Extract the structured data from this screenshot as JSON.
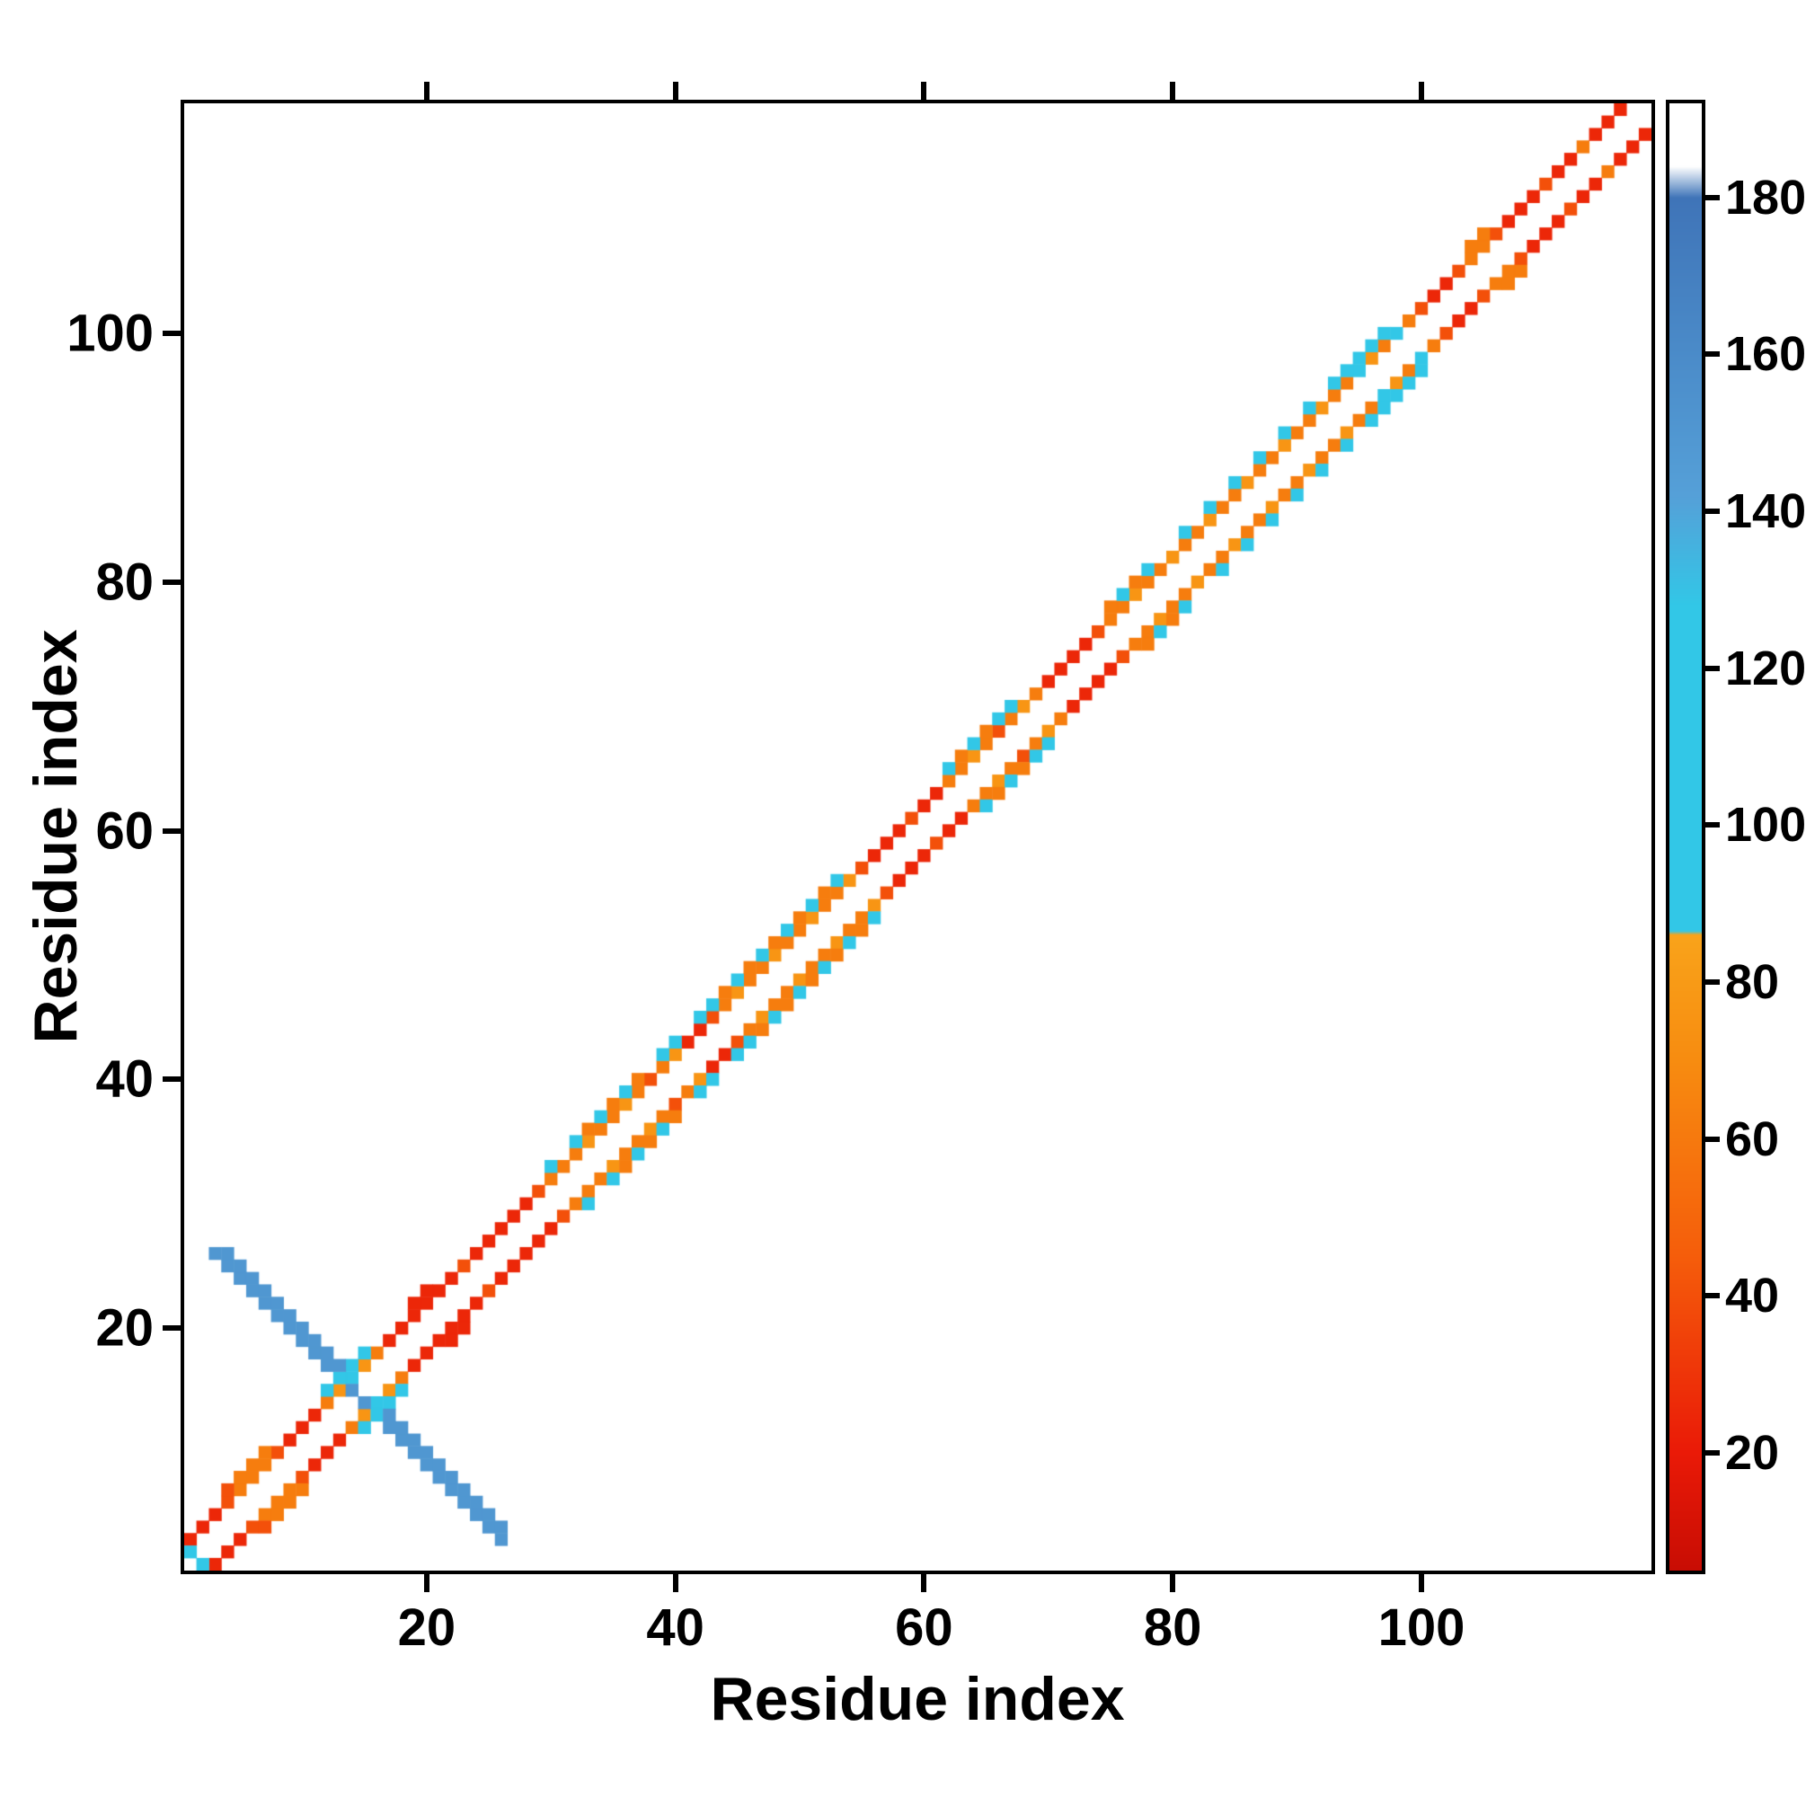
{
  "figure": {
    "background": "#ffffff",
    "frame_color": "#000000"
  },
  "chart_data": {
    "type": "heatmap",
    "title": "",
    "xlabel": "Residue index",
    "ylabel": "Residue index",
    "n_residues": 118,
    "axis_range": [
      1,
      118
    ],
    "x_ticks": [
      20,
      40,
      60,
      80,
      100
    ],
    "y_ticks": [
      20,
      40,
      60,
      80,
      100
    ],
    "grid": false,
    "symmetric": true,
    "background_cell_color": "#ffffff",
    "colorbar": {
      "position": "right",
      "ticks": [
        20,
        40,
        60,
        80,
        100,
        120,
        140,
        160,
        180
      ],
      "vmin": 5,
      "vmax": 192,
      "stops": [
        [
          5,
          "#c80d04"
        ],
        [
          20,
          "#ea1a07"
        ],
        [
          45,
          "#f55d0b"
        ],
        [
          70,
          "#f78c10"
        ],
        [
          86,
          "#f9a31a"
        ],
        [
          86.5,
          "#32c7e7"
        ],
        [
          128,
          "#32c7e7"
        ],
        [
          142,
          "#55a0d8"
        ],
        [
          180,
          "#3f74b8"
        ],
        [
          184,
          "#ffffff"
        ],
        [
          192,
          "#ffffff"
        ]
      ]
    },
    "cells": [
      [
        1,
        3,
        25
      ],
      [
        2,
        4,
        25
      ],
      [
        3,
        5,
        25
      ],
      [
        4,
        6,
        40
      ],
      [
        5,
        7,
        62
      ],
      [
        6,
        8,
        62
      ],
      [
        7,
        9,
        62
      ],
      [
        8,
        10,
        40
      ],
      [
        9,
        11,
        25
      ],
      [
        10,
        12,
        25
      ],
      [
        11,
        13,
        25
      ],
      [
        12,
        14,
        62
      ],
      [
        13,
        15,
        76
      ],
      [
        14,
        16,
        105
      ],
      [
        15,
        17,
        76
      ],
      [
        16,
        18,
        62
      ],
      [
        17,
        19,
        25
      ],
      [
        18,
        20,
        25
      ],
      [
        19,
        21,
        25
      ],
      [
        20,
        22,
        25
      ],
      [
        21,
        23,
        25
      ],
      [
        22,
        24,
        25
      ],
      [
        23,
        25,
        40
      ],
      [
        24,
        26,
        25
      ],
      [
        25,
        27,
        25
      ],
      [
        26,
        28,
        25
      ],
      [
        27,
        29,
        25
      ],
      [
        28,
        30,
        25
      ],
      [
        29,
        31,
        40
      ],
      [
        30,
        32,
        62
      ],
      [
        31,
        33,
        62
      ],
      [
        32,
        34,
        62
      ],
      [
        33,
        35,
        76
      ],
      [
        34,
        36,
        62
      ],
      [
        35,
        37,
        62
      ],
      [
        36,
        38,
        76
      ],
      [
        37,
        39,
        62
      ],
      [
        38,
        40,
        40
      ],
      [
        39,
        41,
        62
      ],
      [
        40,
        42,
        76
      ],
      [
        41,
        43,
        25
      ],
      [
        42,
        44,
        25
      ],
      [
        43,
        45,
        40
      ],
      [
        44,
        46,
        62
      ],
      [
        45,
        47,
        76
      ],
      [
        46,
        48,
        62
      ],
      [
        47,
        49,
        62
      ],
      [
        48,
        50,
        76
      ],
      [
        49,
        51,
        62
      ],
      [
        50,
        52,
        62
      ],
      [
        51,
        53,
        76
      ],
      [
        52,
        54,
        62
      ],
      [
        53,
        55,
        62
      ],
      [
        54,
        56,
        76
      ],
      [
        55,
        57,
        40
      ],
      [
        56,
        58,
        25
      ],
      [
        57,
        59,
        25
      ],
      [
        58,
        60,
        25
      ],
      [
        59,
        61,
        40
      ],
      [
        60,
        62,
        25
      ],
      [
        61,
        63,
        25
      ],
      [
        62,
        64,
        62
      ],
      [
        63,
        65,
        62
      ],
      [
        64,
        66,
        76
      ],
      [
        65,
        67,
        62
      ],
      [
        66,
        68,
        40
      ],
      [
        67,
        69,
        62
      ],
      [
        68,
        70,
        76
      ],
      [
        69,
        71,
        62
      ],
      [
        70,
        72,
        25
      ],
      [
        71,
        73,
        25
      ],
      [
        72,
        74,
        25
      ],
      [
        73,
        75,
        25
      ],
      [
        74,
        76,
        40
      ],
      [
        75,
        77,
        62
      ],
      [
        76,
        78,
        62
      ],
      [
        77,
        79,
        76
      ],
      [
        78,
        80,
        62
      ],
      [
        79,
        81,
        62
      ],
      [
        80,
        82,
        76
      ],
      [
        81,
        83,
        62
      ],
      [
        82,
        84,
        62
      ],
      [
        83,
        85,
        76
      ],
      [
        84,
        86,
        62
      ],
      [
        85,
        87,
        62
      ],
      [
        86,
        88,
        76
      ],
      [
        87,
        89,
        62
      ],
      [
        88,
        90,
        62
      ],
      [
        89,
        91,
        76
      ],
      [
        90,
        92,
        62
      ],
      [
        91,
        93,
        62
      ],
      [
        92,
        94,
        76
      ],
      [
        93,
        95,
        62
      ],
      [
        94,
        96,
        62
      ],
      [
        95,
        97,
        105
      ],
      [
        96,
        98,
        76
      ],
      [
        97,
        99,
        62
      ],
      [
        98,
        100,
        105
      ],
      [
        99,
        101,
        62
      ],
      [
        100,
        102,
        40
      ],
      [
        101,
        103,
        25
      ],
      [
        102,
        104,
        25
      ],
      [
        103,
        105,
        40
      ],
      [
        104,
        106,
        62
      ],
      [
        105,
        107,
        62
      ],
      [
        106,
        108,
        40
      ],
      [
        107,
        109,
        25
      ],
      [
        108,
        110,
        25
      ],
      [
        109,
        111,
        25
      ],
      [
        110,
        112,
        40
      ],
      [
        111,
        113,
        25
      ],
      [
        112,
        114,
        25
      ],
      [
        113,
        115,
        62
      ],
      [
        114,
        116,
        25
      ],
      [
        115,
        117,
        25
      ],
      [
        116,
        118,
        25
      ],
      [
        4,
        7,
        40
      ],
      [
        5,
        8,
        62
      ],
      [
        6,
        9,
        62
      ],
      [
        7,
        10,
        62
      ],
      [
        12,
        15,
        105
      ],
      [
        13,
        16,
        105
      ],
      [
        14,
        17,
        105
      ],
      [
        15,
        18,
        105
      ],
      [
        19,
        22,
        25
      ],
      [
        20,
        23,
        25
      ],
      [
        30,
        33,
        105
      ],
      [
        32,
        35,
        105
      ],
      [
        33,
        36,
        62
      ],
      [
        34,
        37,
        105
      ],
      [
        35,
        38,
        62
      ],
      [
        36,
        39,
        105
      ],
      [
        37,
        40,
        62
      ],
      [
        39,
        42,
        105
      ],
      [
        40,
        43,
        105
      ],
      [
        42,
        45,
        105
      ],
      [
        43,
        46,
        105
      ],
      [
        44,
        47,
        62
      ],
      [
        45,
        48,
        105
      ],
      [
        46,
        49,
        62
      ],
      [
        47,
        50,
        105
      ],
      [
        48,
        51,
        62
      ],
      [
        49,
        52,
        105
      ],
      [
        50,
        53,
        62
      ],
      [
        51,
        54,
        105
      ],
      [
        52,
        55,
        62
      ],
      [
        53,
        56,
        105
      ],
      [
        62,
        65,
        105
      ],
      [
        63,
        66,
        62
      ],
      [
        64,
        67,
        105
      ],
      [
        65,
        68,
        62
      ],
      [
        66,
        69,
        105
      ],
      [
        67,
        70,
        105
      ],
      [
        75,
        78,
        62
      ],
      [
        76,
        79,
        105
      ],
      [
        77,
        80,
        62
      ],
      [
        78,
        81,
        105
      ],
      [
        81,
        84,
        105
      ],
      [
        83,
        86,
        105
      ],
      [
        85,
        88,
        105
      ],
      [
        87,
        90,
        105
      ],
      [
        89,
        92,
        105
      ],
      [
        91,
        94,
        105
      ],
      [
        93,
        96,
        105
      ],
      [
        94,
        97,
        105
      ],
      [
        95,
        98,
        105
      ],
      [
        96,
        99,
        105
      ],
      [
        97,
        100,
        105
      ],
      [
        104,
        107,
        62
      ],
      [
        105,
        108,
        62
      ],
      [
        3,
        26,
        150
      ],
      [
        4,
        25,
        150
      ],
      [
        5,
        24,
        150
      ],
      [
        6,
        23,
        150
      ],
      [
        7,
        22,
        150
      ],
      [
        8,
        21,
        150
      ],
      [
        9,
        20,
        150
      ],
      [
        10,
        19,
        150
      ],
      [
        11,
        18,
        150
      ],
      [
        12,
        17,
        150
      ],
      [
        14,
        15,
        150
      ],
      [
        4,
        26,
        150
      ],
      [
        5,
        25,
        150
      ],
      [
        6,
        24,
        150
      ],
      [
        7,
        23,
        150
      ],
      [
        8,
        22,
        150
      ],
      [
        9,
        21,
        150
      ],
      [
        10,
        20,
        150
      ],
      [
        11,
        19,
        150
      ],
      [
        12,
        18,
        150
      ],
      [
        13,
        17,
        150
      ],
      [
        1,
        2,
        105
      ]
    ]
  }
}
